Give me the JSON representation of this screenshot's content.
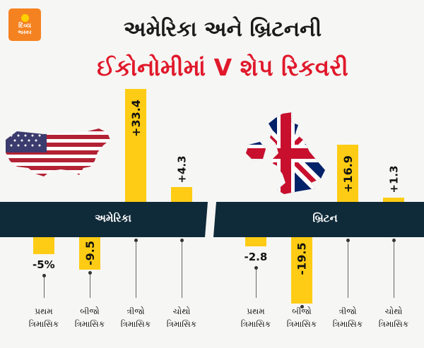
{
  "brand": {
    "line1": "દિવ્ય",
    "line2": "ભાસ્કર"
  },
  "title": {
    "line1": "અમેરિકા અને બ્રિટનની",
    "line2": "ઈકોનોમીમાં V શેપ રિકવરી"
  },
  "colors": {
    "bar": "#fecc14",
    "band": "#0f2a38",
    "title_red": "#e0192b"
  },
  "icons": [
    "usa-flag-map-icon",
    "uk-flag-map-icon"
  ],
  "chart_data": [
    {
      "type": "bar",
      "title": "અમેરિકા",
      "categories": [
        [
          "પ્રથમ",
          "ત્રિમાસિક"
        ],
        [
          "બીજો",
          "ત્રિમાસિક"
        ],
        [
          "ત્રીજો",
          "ત્રિમાસિક"
        ],
        [
          "ચોથો",
          "ત્રિમાસિક"
        ]
      ],
      "values": [
        -5,
        -9.5,
        33.4,
        4.3
      ],
      "labels": [
        "-5%",
        "-9.5",
        "+33.4",
        "+4.3"
      ]
    },
    {
      "type": "bar",
      "title": "બ્રિટન",
      "categories": [
        [
          "પ્રથમ",
          "ત્રિમાસિક"
        ],
        [
          "બીજો",
          "ત્રિમાસિક"
        ],
        [
          "ત્રીજો",
          "ત્રિમાસિક"
        ],
        [
          "ચોથો",
          "ત્રિમાસિક"
        ]
      ],
      "values": [
        -2.8,
        -19.5,
        16.9,
        1.3
      ],
      "labels": [
        "-2.8",
        "-19.5",
        "+16.9",
        "+1.3"
      ]
    }
  ]
}
